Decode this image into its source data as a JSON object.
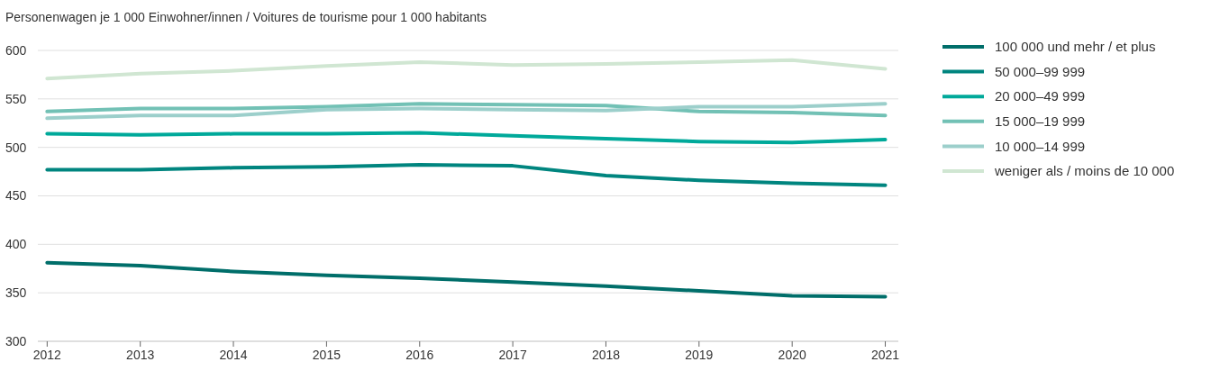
{
  "chart_data": {
    "type": "line",
    "title": "Personenwagen je 1 000 Einwohner/innen / Voitures de tourisme pour 1 000 habitants",
    "x": [
      2012,
      2013,
      2014,
      2015,
      2016,
      2017,
      2018,
      2019,
      2020,
      2021
    ],
    "xlim": [
      2011.9,
      2021.14
    ],
    "xticks": [
      2012,
      2013,
      2014,
      2015,
      2016,
      2017,
      2018,
      2019,
      2020,
      2021
    ],
    "ylim": [
      300,
      600
    ],
    "yticks": [
      300,
      350,
      400,
      450,
      500,
      550,
      600
    ],
    "grid": "y",
    "legend": "top right",
    "marker": "none",
    "line_style": "solid",
    "series": [
      {
        "name": "100 000 und mehr / et plus",
        "color": "#006e6a",
        "values": [
          381,
          378,
          372,
          368,
          365,
          361,
          357,
          352,
          347,
          346
        ]
      },
      {
        "name": "50 000–99 999",
        "color": "#00857f",
        "values": [
          477,
          477,
          479,
          480,
          482,
          481,
          471,
          466,
          463,
          461
        ]
      },
      {
        "name": "20 000–49 999",
        "color": "#00a99a",
        "values": [
          514,
          513,
          514,
          514,
          515,
          512,
          509,
          506,
          505,
          508
        ]
      },
      {
        "name": "15 000–19 999",
        "color": "#72c1b5",
        "values": [
          537,
          540,
          540,
          542,
          545,
          544,
          543,
          537,
          536,
          533
        ]
      },
      {
        "name": "10 000–14 999",
        "color": "#9ccfcb",
        "values": [
          530,
          533,
          533,
          539,
          540,
          539,
          538,
          542,
          542,
          545
        ]
      },
      {
        "name": "weniger als / moins de 10 000",
        "color": "#d0e6d2",
        "values": [
          571,
          576,
          579,
          584,
          588,
          585,
          586,
          588,
          590,
          581
        ]
      }
    ]
  }
}
